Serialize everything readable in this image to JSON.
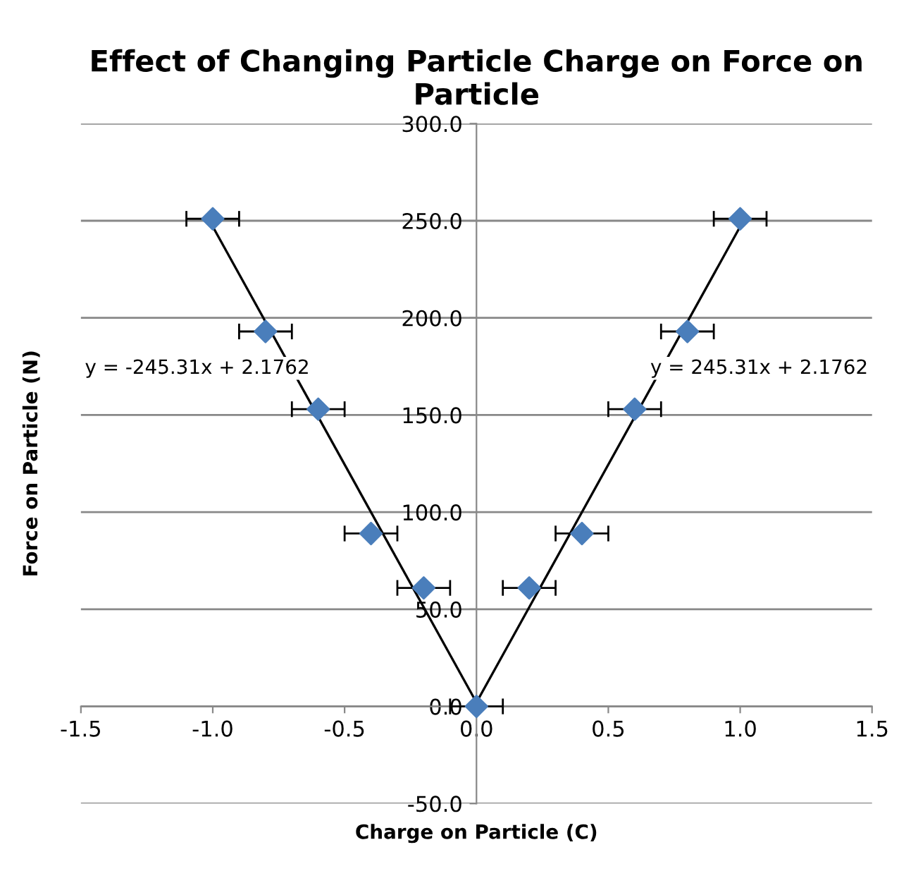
{
  "chart_data": {
    "type": "scatter",
    "title": "Effect of Changing Particle Charge on Force on Particle",
    "xlabel": "Charge on Particle (C)",
    "ylabel": "Force on Particle (N)",
    "x": [
      -1.0,
      -0.8,
      -0.6,
      -0.4,
      -0.2,
      0.0,
      0.2,
      0.4,
      0.6,
      0.8,
      1.0
    ],
    "series": [
      {
        "color": "#4a7ebb",
        "values": [
          251,
          193,
          153,
          89,
          61,
          0,
          61,
          89,
          153,
          193,
          251
        ],
        "xerrors": [
          0.1,
          0.1,
          0.1,
          0.1,
          0.1,
          0.1,
          0.1,
          0.1,
          0.1,
          0.1,
          0.1
        ]
      },
      {
        "type": "line",
        "marker": "none",
        "color": "#000000",
        "x": [
          -1.0,
          0.0
        ],
        "values": [
          247,
          2
        ]
      },
      {
        "type": "line",
        "marker": "none",
        "color": "#000000",
        "x": [
          0.0,
          1.0
        ],
        "values": [
          2,
          247
        ]
      }
    ],
    "annotations": [
      "y = -245.31x + 2.1762",
      "y = 245.31x + 2.1762"
    ],
    "xlim": [
      -1.5,
      1.5
    ],
    "ylim": [
      -50,
      300
    ],
    "xticks": [
      {
        "value": -1.5,
        "label": "-1.5"
      },
      {
        "value": -1.0,
        "label": "-1.0"
      },
      {
        "value": -0.5,
        "label": "-0.5"
      },
      {
        "value": 0.0,
        "label": "0.0"
      },
      {
        "value": 0.5,
        "label": "0.5"
      },
      {
        "value": 1.0,
        "label": "1.0"
      },
      {
        "value": 1.5,
        "label": "1.5"
      }
    ],
    "yticks": [
      {
        "value": -50,
        "label": "-50.0"
      },
      {
        "value": 0,
        "label": "0.0"
      },
      {
        "value": 50,
        "label": "50.0"
      },
      {
        "value": 100,
        "label": "100.0"
      },
      {
        "value": 150,
        "label": "150.0"
      },
      {
        "value": 200,
        "label": "200.0"
      },
      {
        "value": 250,
        "label": "250.0"
      },
      {
        "value": 300,
        "label": "300.0"
      }
    ],
    "grid": "y",
    "marker": "diamond",
    "legend": false
  }
}
